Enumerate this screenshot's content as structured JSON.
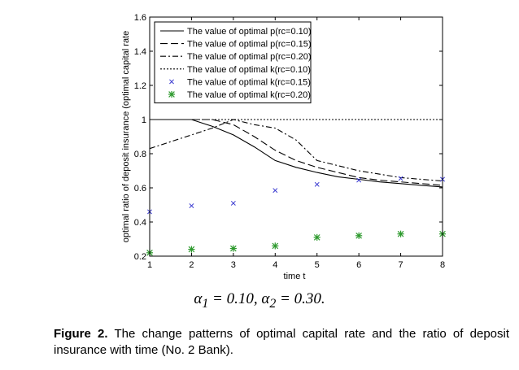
{
  "chart_data": {
    "type": "line",
    "title": "",
    "xlabel": "time t",
    "ylabel": "optimal ratio of deposit insurance (optimal capital rate",
    "xlim": [
      1,
      8
    ],
    "ylim": [
      0.2,
      1.6
    ],
    "x_ticks": [
      "1",
      "2",
      "3",
      "4",
      "5",
      "6",
      "7",
      "8"
    ],
    "y_ticks": [
      "0.2",
      "0.4",
      "0.6",
      "0.8",
      "1",
      "1.2",
      "1.4",
      "1.6"
    ],
    "grid": false,
    "legend_position": "top-right",
    "x": [
      1,
      1.5,
      2,
      2.5,
      3,
      3.5,
      4,
      4.5,
      5,
      5.5,
      6,
      6.5,
      7,
      7.5,
      8
    ],
    "series": [
      {
        "name": "The value of optimal  p(rc=0.10)",
        "style": "solid",
        "color": "#000000",
        "values": [
          1,
          1,
          1,
          0.96,
          0.91,
          0.84,
          0.76,
          0.72,
          0.69,
          0.665,
          0.65,
          0.635,
          0.625,
          0.615,
          0.605
        ]
      },
      {
        "name": "The value of optimal  p(rc=0.15)",
        "style": "dashed",
        "color": "#000000",
        "values": [
          1,
          1,
          1,
          1,
          0.97,
          0.9,
          0.82,
          0.76,
          0.72,
          0.69,
          0.66,
          0.645,
          0.635,
          0.625,
          0.615
        ]
      },
      {
        "name": "The value of optimal  p(rc=0.20)",
        "style": "dashdot",
        "color": "#000000",
        "values": [
          0.83,
          0.87,
          0.91,
          0.95,
          1,
          0.97,
          0.95,
          0.88,
          0.76,
          0.73,
          0.7,
          0.68,
          0.66,
          0.65,
          0.64
        ]
      },
      {
        "name": "The value of optimal  k(rc=0.10)",
        "style": "dotted",
        "color": "#000000",
        "values": [
          1,
          1,
          1,
          1,
          1,
          1,
          1,
          1,
          1,
          1,
          1,
          1,
          1,
          1,
          1
        ]
      }
    ],
    "points": [
      {
        "name": "The value of optimal  k(rc=0.15)",
        "marker": "x",
        "color": "#3a3ad0",
        "x": [
          1,
          2,
          3,
          4,
          5,
          6,
          7,
          8
        ],
        "values": [
          0.46,
          0.495,
          0.51,
          0.585,
          0.62,
          0.645,
          0.655,
          0.65
        ]
      },
      {
        "name": "The value of optimal  k(rc=0.20)",
        "marker": "star",
        "color": "#2e9a2e",
        "x": [
          1,
          2,
          3,
          4,
          5,
          6,
          7,
          8
        ],
        "values": [
          0.22,
          0.24,
          0.245,
          0.26,
          0.31,
          0.32,
          0.33,
          0.33
        ]
      }
    ]
  },
  "params_text": "α1 = 0.10, α2 = 0.30.",
  "params": {
    "a1_sub": "1",
    "eq1": " = 0.10, ",
    "a2_sub": "2",
    "eq2": " = 0.30."
  },
  "caption": {
    "label": "Figure 2.",
    "text": " The change patterns of optimal capital rate and the ratio of deposit insurance with time (No. 2 Bank)."
  }
}
